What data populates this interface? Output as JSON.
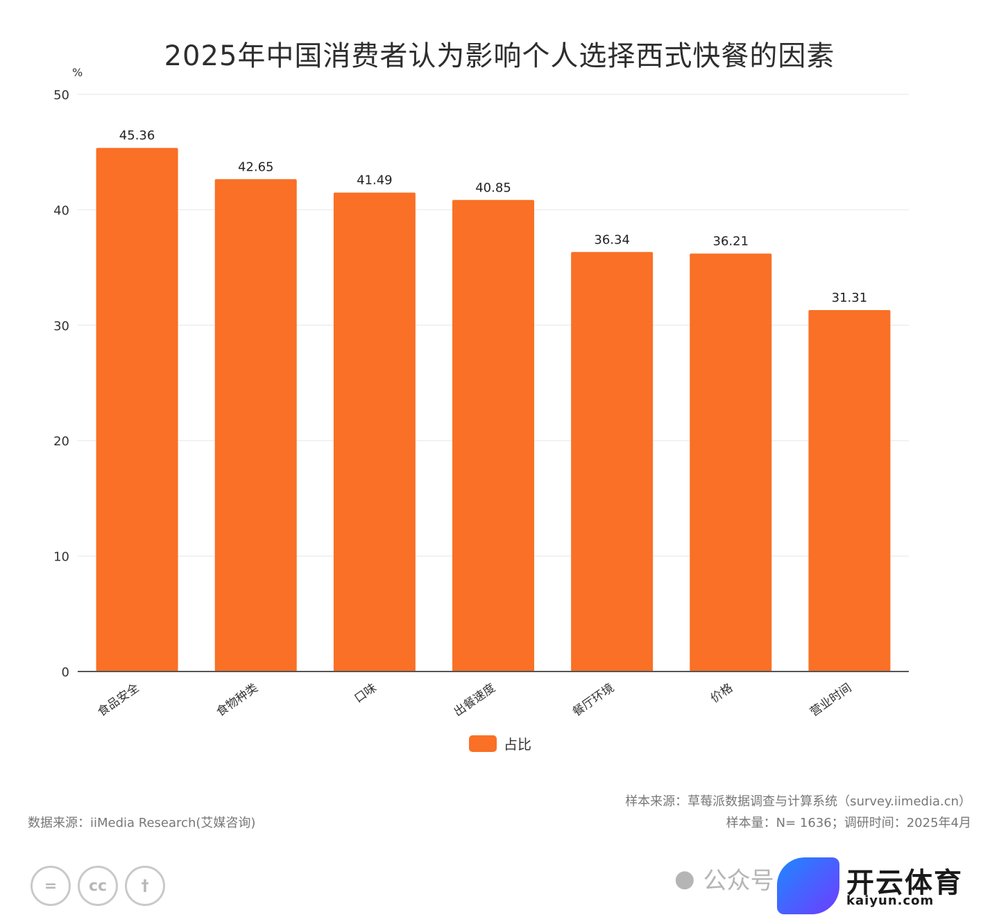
{
  "chart_data": {
    "type": "bar",
    "title": "2025年中国消费者认为影响个人选择西式快餐的因素",
    "ylabel": "%",
    "categories": [
      "食品安全",
      "食物种类",
      "口味",
      "出餐速度",
      "餐厅环境",
      "价格",
      "营业时间"
    ],
    "series": [
      {
        "name": "占比",
        "values": [
          45.36,
          42.65,
          41.49,
          40.85,
          36.34,
          36.21,
          31.31
        ]
      }
    ],
    "ylim": [
      0,
      50
    ],
    "yticks": [
      0,
      10,
      20,
      30,
      40,
      50
    ],
    "grid": true,
    "legend": "bottom",
    "bar_color": "#f97026",
    "data_labels": true
  },
  "footer": {
    "data_source": "数据来源：iiMedia Research(艾媒咨询)",
    "sample_source": "样本来源：草莓派数据调查与计算系统（survey.iimedia.cn）",
    "sample_info": "样本量：N= 1636；调研时间：2025年4月"
  },
  "license_icons": [
    "equals-icon",
    "cc-icon",
    "person-icon"
  ],
  "license_glyphs": [
    "=",
    "cc",
    "†"
  ],
  "watermark": {
    "icon": "wechat-icon",
    "label": "公众号",
    "brand_name": "开云体育",
    "brand_url": "kaiyun.com"
  }
}
